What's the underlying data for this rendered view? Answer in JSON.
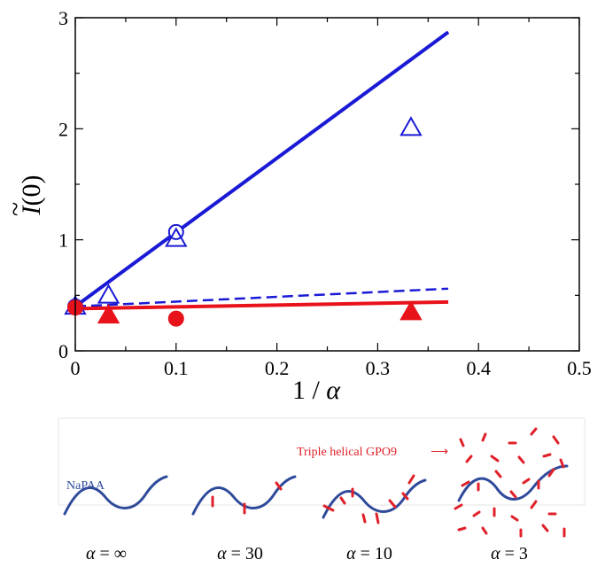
{
  "chart_data": {
    "type": "scatter",
    "xlabel_prefix": "1 / ",
    "xlabel_symbol": "α",
    "ylabel_text": "I",
    "ylabel_accent": "~",
    "ylabel_arg": "(0)",
    "xlim": [
      0,
      0.5
    ],
    "ylim": [
      0,
      3
    ],
    "xticks": [
      "0",
      "0.1",
      "0.2",
      "0.3",
      "0.4",
      "0.5"
    ],
    "yticks": [
      "0",
      "1",
      "2",
      "3"
    ],
    "xtick_values": [
      0,
      0.1,
      0.2,
      0.3,
      0.4,
      0.5
    ],
    "ytick_values": [
      0,
      1,
      2,
      3
    ],
    "grid": false,
    "series": [
      {
        "marker": "open-circle",
        "color": "#1a1ad6",
        "x": [
          0,
          0.1
        ],
        "y": [
          0.4,
          1.07
        ]
      },
      {
        "marker": "open-triangle",
        "color": "#1a1ad6",
        "x": [
          0,
          0.033,
          0.1,
          0.333
        ],
        "y": [
          0.4,
          0.5,
          1.01,
          2.01
        ]
      },
      {
        "marker": "filled-circle",
        "color": "#e8121b",
        "x": [
          0,
          0.1
        ],
        "y": [
          0.39,
          0.29
        ]
      },
      {
        "marker": "filled-triangle",
        "color": "#e8121b",
        "x": [
          0.033,
          0.333
        ],
        "y": [
          0.32,
          0.35
        ]
      }
    ],
    "lines": [
      {
        "style": "solid",
        "color": "#1a1ad6",
        "x": [
          0,
          0.37
        ],
        "y": [
          0.4,
          2.87
        ]
      },
      {
        "style": "dashed",
        "color": "#1a1ad6",
        "x": [
          0,
          0.37
        ],
        "y": [
          0.4,
          0.56
        ]
      },
      {
        "style": "solid",
        "color": "#e8121b",
        "x": [
          0,
          0.37
        ],
        "y": [
          0.38,
          0.44
        ]
      }
    ]
  },
  "schematic": {
    "polymer_label": "NaPAA",
    "gpo_label": "Triple helical GPO9",
    "arrow_glyph": "⟶",
    "polymer_color": "#2f4a9a",
    "gpo_color": "#e0202a",
    "panels": [
      {
        "symbol": "α",
        "op": " = ",
        "value": "∞"
      },
      {
        "symbol": "α",
        "op": " = ",
        "value": "30"
      },
      {
        "symbol": "α",
        "op": " = ",
        "value": "10"
      },
      {
        "symbol": "α",
        "op": " = ",
        "value": "3"
      }
    ]
  }
}
